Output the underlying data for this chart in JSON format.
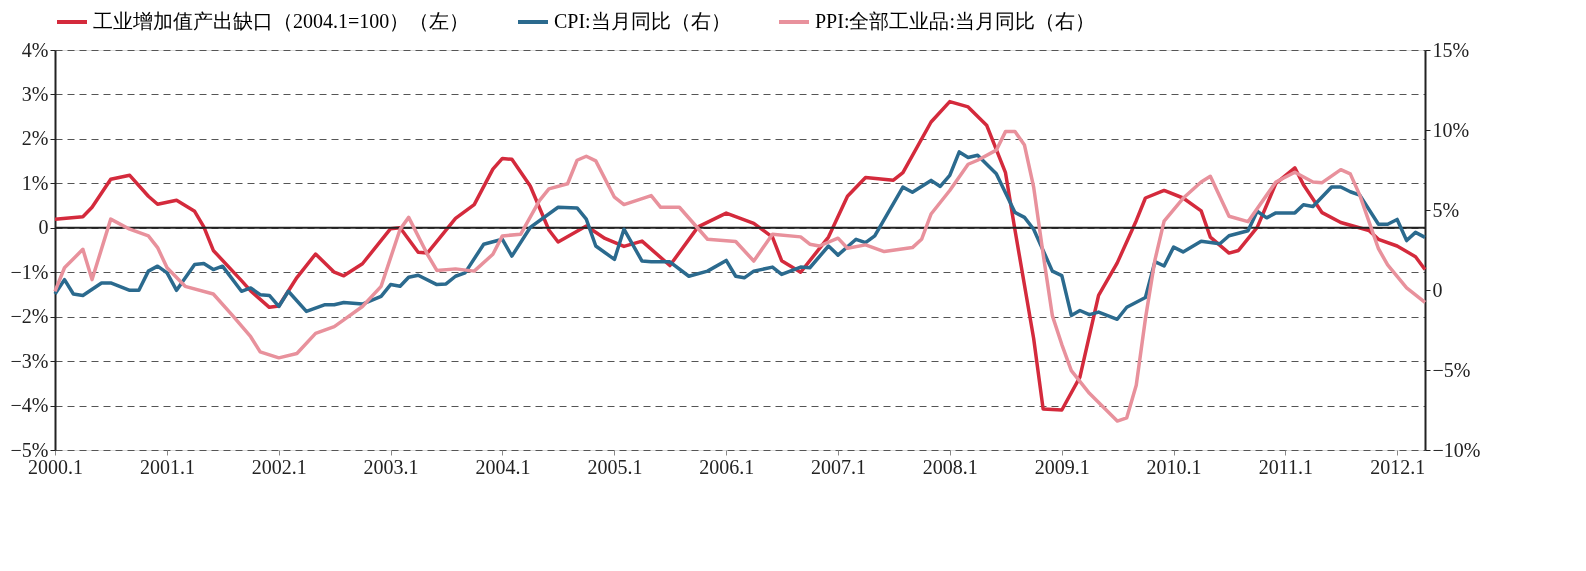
{
  "chart_data": {
    "type": "line",
    "xlim": [
      "2000-01",
      "2012-04"
    ],
    "xticks": [
      {
        "value": "2000-01",
        "label": "2000.1"
      },
      {
        "value": "2001-01",
        "label": "2001.1"
      },
      {
        "value": "2002-01",
        "label": "2002.1"
      },
      {
        "value": "2003-01",
        "label": "2003.1"
      },
      {
        "value": "2004-01",
        "label": "2004.1"
      },
      {
        "value": "2005-01",
        "label": "2005.1"
      },
      {
        "value": "2006-01",
        "label": "2006.1"
      },
      {
        "value": "2007-01",
        "label": "2007.1"
      },
      {
        "value": "2008-01",
        "label": "2008.1"
      },
      {
        "value": "2009-01",
        "label": "2009.1"
      },
      {
        "value": "2010-01",
        "label": "2010.1"
      },
      {
        "value": "2011-01",
        "label": "2011.1"
      },
      {
        "value": "2012-01",
        "label": "2012.1"
      }
    ],
    "ylim": [
      -5,
      4
    ],
    "yticks": [
      {
        "value": 4,
        "label": "4%"
      },
      {
        "value": 3,
        "label": "3%"
      },
      {
        "value": 2,
        "label": "2%"
      },
      {
        "value": 1,
        "label": "1%"
      },
      {
        "value": 0,
        "label": "0"
      },
      {
        "value": -1,
        "label": "−1%"
      },
      {
        "value": -2,
        "label": "−2%"
      },
      {
        "value": -3,
        "label": "−3%"
      },
      {
        "value": -4,
        "label": "−4%"
      },
      {
        "value": -5,
        "label": "−5%"
      }
    ],
    "y2lim": [
      -10,
      15
    ],
    "y2ticks": [
      {
        "value": 15,
        "label": "15%"
      },
      {
        "value": 10,
        "label": "10%"
      },
      {
        "value": 5,
        "label": "5%"
      },
      {
        "value": 0,
        "label": "0"
      },
      {
        "value": -5,
        "label": "−5%"
      },
      {
        "value": -10,
        "label": "−10%"
      }
    ],
    "grid": "y",
    "legend": "top",
    "line_style": "solid",
    "marker": "none",
    "ref_lines": [
      {
        "axis": "y",
        "value": 0,
        "color": "#222222",
        "line_style": "solid"
      }
    ],
    "series": [
      {
        "name": "工业增加值产出缺口（2004.1=100）（左）",
        "color": "#d42a3c",
        "axis": "y",
        "x": [
          "2000-01",
          "2000-04",
          "2000-05",
          "2000-07",
          "2000-09",
          "2000-11",
          "2000-12",
          "2001-02",
          "2001-04",
          "2001-05",
          "2001-06",
          "2001-09",
          "2001-10",
          "2001-12",
          "2002-01",
          "2002-03",
          "2002-05",
          "2002-07",
          "2002-08",
          "2002-10",
          "2003-01",
          "2003-02",
          "2003-04",
          "2003-05",
          "2003-08",
          "2003-10",
          "2003-12",
          "2004-01",
          "2004-02",
          "2004-04",
          "2004-06",
          "2004-07",
          "2004-10",
          "2004-12",
          "2005-02",
          "2005-04",
          "2005-07",
          "2005-10",
          "2006-01",
          "2006-04",
          "2006-06",
          "2006-07",
          "2006-09",
          "2006-12",
          "2007-02",
          "2007-04",
          "2007-07",
          "2007-08",
          "2007-11",
          "2008-01",
          "2008-03",
          "2008-05",
          "2008-07",
          "2008-08",
          "2008-10",
          "2008-11",
          "2009-01",
          "2009-03",
          "2009-05",
          "2009-07",
          "2009-09",
          "2009-10",
          "2009-12",
          "2010-02",
          "2010-04",
          "2010-05",
          "2010-07",
          "2010-08",
          "2010-10",
          "2010-12",
          "2011-02",
          "2011-03",
          "2011-05",
          "2011-07",
          "2011-10",
          "2011-11",
          "2012-01",
          "2012-03",
          "2012-04"
        ],
        "values": [
          0.19,
          0.25,
          0.46,
          1.09,
          1.18,
          0.71,
          0.53,
          0.62,
          0.37,
          0.02,
          -0.51,
          -1.19,
          -1.42,
          -1.79,
          -1.76,
          -1.12,
          -0.59,
          -1.0,
          -1.08,
          -0.81,
          -0.02,
          0.0,
          -0.55,
          -0.57,
          0.21,
          0.52,
          1.32,
          1.56,
          1.54,
          0.94,
          -0.05,
          -0.32,
          0.04,
          -0.24,
          -0.42,
          -0.3,
          -0.85,
          0.02,
          0.33,
          0.1,
          -0.21,
          -0.74,
          -1.0,
          -0.21,
          0.71,
          1.13,
          1.07,
          1.24,
          2.38,
          2.84,
          2.72,
          2.3,
          1.24,
          -0.05,
          -2.49,
          -4.08,
          -4.1,
          -3.36,
          -1.52,
          -0.79,
          0.16,
          0.67,
          0.84,
          0.67,
          0.38,
          -0.21,
          -0.57,
          -0.51,
          0.01,
          1.0,
          1.35,
          0.97,
          0.34,
          0.12,
          -0.06,
          -0.26,
          -0.41,
          -0.65,
          -0.94
        ]
      },
      {
        "name": "CPI:当月同比（右）",
        "color": "#2b6a8e",
        "axis": "y2",
        "x": [
          "2000-01",
          "2000-02",
          "2000-03",
          "2000-04",
          "2000-06",
          "2000-07",
          "2000-09",
          "2000-10",
          "2000-11",
          "2000-12",
          "2001-01",
          "2001-02",
          "2001-04",
          "2001-05",
          "2001-06",
          "2001-07",
          "2001-09",
          "2001-10",
          "2001-11",
          "2001-12",
          "2002-01",
          "2002-02",
          "2002-04",
          "2002-06",
          "2002-07",
          "2002-08",
          "2002-10",
          "2002-12",
          "2003-01",
          "2003-02",
          "2003-03",
          "2003-04",
          "2003-06",
          "2003-07",
          "2003-08",
          "2003-09",
          "2003-11",
          "2004-01",
          "2004-02",
          "2004-04",
          "2004-07",
          "2004-09",
          "2004-10",
          "2004-11",
          "2005-01",
          "2005-02",
          "2005-04",
          "2005-05",
          "2005-07",
          "2005-09",
          "2005-11",
          "2006-01",
          "2006-02",
          "2006-03",
          "2006-04",
          "2006-06",
          "2006-07",
          "2006-09",
          "2006-10",
          "2006-12",
          "2007-01",
          "2007-03",
          "2007-04",
          "2007-05",
          "2007-08",
          "2007-09",
          "2007-11",
          "2007-12",
          "2008-01",
          "2008-02",
          "2008-03",
          "2008-04",
          "2008-06",
          "2008-08",
          "2008-09",
          "2008-10",
          "2008-12",
          "2009-01",
          "2009-02",
          "2009-03",
          "2009-04",
          "2009-05",
          "2009-07",
          "2009-08",
          "2009-10",
          "2009-11",
          "2009-12",
          "2010-01",
          "2010-02",
          "2010-04",
          "2010-06",
          "2010-07",
          "2010-09",
          "2010-10",
          "2010-11",
          "2010-12",
          "2011-02",
          "2011-03",
          "2011-04",
          "2011-06",
          "2011-07",
          "2011-08",
          "2011-09",
          "2011-11",
          "2011-12",
          "2012-01",
          "2012-02",
          "2012-03",
          "2012-04"
        ],
        "values": [
          -0.25,
          0.65,
          -0.25,
          -0.34,
          0.44,
          0.44,
          -0.02,
          -0.02,
          1.18,
          1.49,
          1.07,
          -0.02,
          1.6,
          1.66,
          1.28,
          1.49,
          -0.08,
          0.13,
          -0.29,
          -0.34,
          -1.03,
          -0.08,
          -1.34,
          -0.92,
          -0.92,
          -0.78,
          -0.88,
          -0.4,
          0.34,
          0.23,
          0.8,
          0.92,
          0.34,
          0.38,
          0.86,
          1.07,
          2.86,
          3.17,
          2.12,
          3.91,
          5.17,
          5.13,
          4.43,
          2.75,
          1.91,
          3.8,
          1.81,
          1.76,
          1.76,
          0.86,
          1.18,
          1.85,
          0.86,
          0.76,
          1.18,
          1.43,
          0.97,
          1.43,
          1.39,
          2.75,
          2.18,
          3.17,
          2.96,
          3.38,
          6.43,
          6.11,
          6.85,
          6.47,
          7.16,
          8.63,
          8.28,
          8.42,
          7.27,
          4.85,
          4.54,
          3.8,
          1.18,
          0.9,
          -1.59,
          -1.28,
          -1.54,
          -1.38,
          -1.83,
          -1.08,
          -0.47,
          1.77,
          1.5,
          2.68,
          2.38,
          3.05,
          2.89,
          3.39,
          3.7,
          4.92,
          4.51,
          4.82,
          4.82,
          5.33,
          5.22,
          6.44,
          6.44,
          6.14,
          5.93,
          4.11,
          4.11,
          4.41,
          3.09,
          3.6,
          3.29
        ]
      },
      {
        "name": "PPI:全部工业品:当月同比（右）",
        "color": "#e8919c",
        "axis": "y2",
        "x": [
          "2000-01",
          "2000-02",
          "2000-04",
          "2000-05",
          "2000-07",
          "2000-09",
          "2000-11",
          "2000-12",
          "2001-01",
          "2001-03",
          "2001-06",
          "2001-08",
          "2001-10",
          "2001-11",
          "2002-01",
          "2002-03",
          "2002-05",
          "2002-07",
          "2002-08",
          "2002-10",
          "2002-12",
          "2003-02",
          "2003-03",
          "2003-05",
          "2003-06",
          "2003-08",
          "2003-10",
          "2003-12",
          "2004-01",
          "2004-03",
          "2004-05",
          "2004-06",
          "2004-08",
          "2004-09",
          "2004-10",
          "2004-11",
          "2005-01",
          "2005-02",
          "2005-05",
          "2005-06",
          "2005-08",
          "2005-11",
          "2006-02",
          "2006-04",
          "2006-06",
          "2006-09",
          "2006-10",
          "2006-11",
          "2007-01",
          "2007-02",
          "2007-04",
          "2007-06",
          "2007-09",
          "2007-10",
          "2007-11",
          "2008-01",
          "2008-03",
          "2008-04",
          "2008-06",
          "2008-07",
          "2008-08",
          "2008-09",
          "2008-10",
          "2008-11",
          "2008-12",
          "2009-01",
          "2009-02",
          "2009-04",
          "2009-07",
          "2009-08",
          "2009-09",
          "2009-10",
          "2009-11",
          "2009-12",
          "2010-02",
          "2010-04",
          "2010-05",
          "2010-07",
          "2010-09",
          "2010-11",
          "2010-12",
          "2011-02",
          "2011-04",
          "2011-05",
          "2011-07",
          "2011-08",
          "2011-09",
          "2011-11",
          "2011-12",
          "2012-02",
          "2012-04"
        ],
        "values": [
          -0.08,
          1.39,
          2.54,
          0.65,
          4.43,
          3.8,
          3.38,
          2.65,
          1.39,
          0.23,
          -0.25,
          -1.55,
          -2.92,
          -3.87,
          -4.24,
          -3.97,
          -2.71,
          -2.29,
          -1.87,
          -1.03,
          0.23,
          3.8,
          4.54,
          2.23,
          1.22,
          1.32,
          1.18,
          2.23,
          3.38,
          3.49,
          5.59,
          6.32,
          6.64,
          8.11,
          8.36,
          8.07,
          5.8,
          5.34,
          5.9,
          5.17,
          5.17,
          3.17,
          3.03,
          1.81,
          3.49,
          3.32,
          2.86,
          2.75,
          3.24,
          2.61,
          2.82,
          2.4,
          2.65,
          3.17,
          4.75,
          6.22,
          7.86,
          8.11,
          8.74,
          9.9,
          9.9,
          9.06,
          6.43,
          2.23,
          -1.6,
          -3.41,
          -5.04,
          -6.46,
          -8.19,
          -7.99,
          -5.96,
          -1.79,
          1.87,
          4.31,
          5.73,
          6.75,
          7.11,
          4.61,
          4.27,
          5.93,
          6.75,
          7.36,
          6.75,
          6.71,
          7.52,
          7.26,
          5.93,
          2.58,
          1.57,
          0.14,
          -0.77
        ]
      }
    ]
  }
}
